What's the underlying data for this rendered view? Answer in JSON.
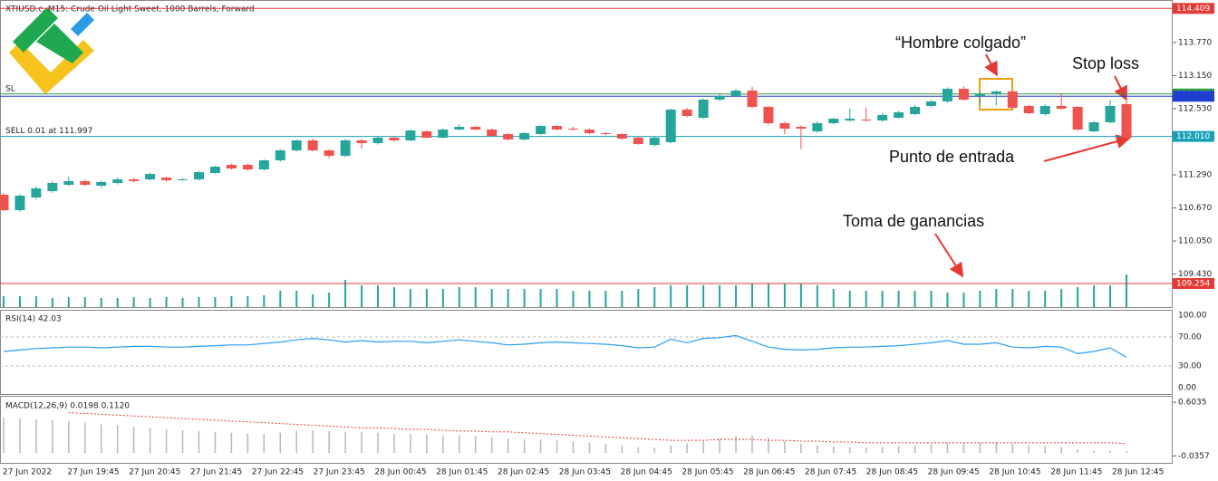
{
  "chart_data": {
    "type": "candlestick",
    "title": "XTIUSD.c, M15:  Crude Oil Light Sweet, 1000 Barrels, Forward",
    "xtick_labels": [
      "27 Jun 2022",
      "27 Jun 19:45",
      "27 Jun 20:45",
      "27 Jun 21:45",
      "27 Jun 22:45",
      "27 Jun 23:45",
      "28 Jun 00:45",
      "28 Jun 01:45",
      "28 Jun 02:45",
      "28 Jun 03:45",
      "28 Jun 04:45",
      "28 Jun 05:45",
      "28 Jun 06:45",
      "28 Jun 07:45",
      "28 Jun 08:45",
      "28 Jun 09:45",
      "28 Jun 10:45",
      "28 Jun 11:45",
      "28 Jun 12:45"
    ],
    "open": [
      110.917,
      110.628,
      110.866,
      110.985,
      111.104,
      111.172,
      111.087,
      111.138,
      111.205,
      111.205,
      111.239,
      111.205,
      111.205,
      111.324,
      111.477,
      111.477,
      111.392,
      111.562,
      111.749,
      111.936,
      111.749,
      111.647,
      111.936,
      111.885,
      111.987,
      111.936,
      112.105,
      111.987,
      112.139,
      112.19,
      112.139,
      112.054,
      111.953,
      112.054,
      112.207,
      112.156,
      112.139,
      112.071,
      112.054,
      111.987,
      111.851,
      111.902,
      112.513,
      112.36,
      112.7,
      112.768,
      112.87,
      112.564,
      112.258,
      112.19,
      112.105,
      112.258,
      112.309,
      112.326,
      112.309,
      112.36,
      112.428,
      112.581,
      112.666,
      112.904,
      112.768,
      112.802,
      112.853,
      112.581,
      112.428,
      112.581,
      112.564,
      112.105,
      112.275,
      112.615
    ],
    "high": [
      110.95,
      110.93,
      111.07,
      111.17,
      111.26,
      111.2,
      111.18,
      111.24,
      111.23,
      111.33,
      111.26,
      111.23,
      111.36,
      111.46,
      111.5,
      111.5,
      111.58,
      111.77,
      111.95,
      111.97,
      111.77,
      111.96,
      111.97,
      112.02,
      112.01,
      112.14,
      112.13,
      112.16,
      112.24,
      112.21,
      112.16,
      112.07,
      112.09,
      112.22,
      112.22,
      112.19,
      112.16,
      112.09,
      112.07,
      112.0,
      112.01,
      112.53,
      112.55,
      112.72,
      112.8,
      112.9,
      112.94,
      112.58,
      112.29,
      112.22,
      112.29,
      112.36,
      112.53,
      112.55,
      112.45,
      112.49,
      112.6,
      112.69,
      112.93,
      112.95,
      112.85,
      112.87,
      112.87,
      112.6,
      112.61,
      112.82,
      112.58,
      112.3,
      112.7,
      112.76
    ],
    "low": [
      110.6,
      110.6,
      110.83,
      110.95,
      111.08,
      111.08,
      111.05,
      111.11,
      111.15,
      111.18,
      111.16,
      111.18,
      111.19,
      111.31,
      111.39,
      111.37,
      111.37,
      111.54,
      111.73,
      111.73,
      111.6,
      111.62,
      111.78,
      111.86,
      111.91,
      111.92,
      111.97,
      111.97,
      112.12,
      112.12,
      112.0,
      111.93,
      111.93,
      112.04,
      112.12,
      112.12,
      112.05,
      112.03,
      111.95,
      111.85,
      111.82,
      111.88,
      112.37,
      112.34,
      112.68,
      112.75,
      112.54,
      112.23,
      112.05,
      111.77,
      112.08,
      112.24,
      112.29,
      112.29,
      112.29,
      112.34,
      112.41,
      112.56,
      112.64,
      112.68,
      112.6,
      112.59,
      112.53,
      112.42,
      112.4,
      112.51,
      112.12,
      112.09,
      112.26,
      111.96
    ],
    "close": [
      110.628,
      110.9,
      111.036,
      111.138,
      111.172,
      111.104,
      111.155,
      111.205,
      111.172,
      111.307,
      111.188,
      111.205,
      111.341,
      111.443,
      111.409,
      111.392,
      111.562,
      111.749,
      111.936,
      111.749,
      111.647,
      111.936,
      111.885,
      111.987,
      111.936,
      112.122,
      111.987,
      112.139,
      112.19,
      112.139,
      112.021,
      111.953,
      112.071,
      112.207,
      112.139,
      112.139,
      112.071,
      112.054,
      111.97,
      111.868,
      111.987,
      112.513,
      112.394,
      112.7,
      112.768,
      112.87,
      112.564,
      112.258,
      112.156,
      112.156,
      112.258,
      112.343,
      112.343,
      112.309,
      112.411,
      112.462,
      112.564,
      112.666,
      112.904,
      112.7,
      112.802,
      112.853,
      112.547,
      112.445,
      112.581,
      112.53,
      112.139,
      112.275,
      112.581,
      111.987
    ],
    "volume": [
      12,
      12,
      12,
      10,
      11,
      11,
      10,
      10,
      11,
      10,
      11,
      10,
      11,
      11,
      12,
      12,
      13,
      18,
      18,
      14,
      16,
      30,
      24,
      24,
      22,
      20,
      20,
      20,
      22,
      22,
      20,
      20,
      20,
      20,
      20,
      18,
      18,
      18,
      18,
      20,
      22,
      24,
      24,
      24,
      24,
      24,
      26,
      26,
      26,
      26,
      24,
      20,
      18,
      18,
      18,
      18,
      18,
      18,
      16,
      16,
      18,
      20,
      20,
      18,
      18,
      20,
      22,
      24,
      24,
      36
    ],
    "up_color": "#26a69a",
    "down_color": "#ef5350",
    "volume_color": "#26a69a",
    "ylim": [
      108.795,
      114.567
    ],
    "yticks": [
      {
        "value": 113.77,
        "label": "113.770"
      },
      {
        "value": 113.15,
        "label": "113.150"
      },
      {
        "value": 112.53,
        "label": "112.530"
      },
      {
        "value": 111.29,
        "label": "111.290"
      },
      {
        "value": 110.67,
        "label": "110.670"
      },
      {
        "value": 110.05,
        "label": "110.050"
      },
      {
        "value": 109.43,
        "label": "109.430"
      }
    ],
    "levels": [
      {
        "value": 114.409,
        "color": "#e53935"
      },
      {
        "value": 112.805,
        "color": "#2e9e3e",
        "text": "SL"
      },
      {
        "value": 112.763,
        "color": "#1e3fd0"
      },
      {
        "value": 112.01,
        "label": "112.010",
        "color": "#17a2b8",
        "text": "SELL 0.01 at 111.997"
      },
      {
        "value": 109.254,
        "color": "#e53935"
      }
    ],
    "annotations": [
      "“Hombre colgado”",
      "Stop loss",
      "Punto de entrada",
      "Toma de ganancias"
    ],
    "rsi": {
      "title": "RSI(14) 42.03",
      "color": "#2a9df4",
      "values": [
        50,
        52,
        54,
        55,
        56,
        56,
        55,
        56,
        57,
        57,
        56,
        56,
        57,
        58,
        59,
        59,
        61,
        63,
        66,
        68,
        66,
        63,
        65,
        63,
        64,
        64,
        62,
        64,
        66,
        64,
        62,
        59,
        60,
        62,
        63,
        62,
        61,
        60,
        58,
        55,
        56,
        67,
        62,
        68,
        69,
        72,
        64,
        56,
        53,
        52,
        53,
        55,
        56,
        56,
        57,
        58,
        60,
        62,
        65,
        60,
        60,
        62,
        56,
        55,
        57,
        56,
        47,
        50,
        55,
        42.03
      ],
      "ylim": [
        0,
        100
      ],
      "yticks": [
        {
          "value": 100,
          "label": "100.00"
        },
        {
          "value": 70,
          "label": "70.00"
        },
        {
          "value": 30,
          "label": "30.00"
        },
        {
          "value": 0,
          "label": "0.00"
        }
      ]
    },
    "macd": {
      "title": "MACD(12,26,9) 0.0198 0.1120",
      "histogram_color": "#b8b8b8",
      "signal_color": "#e53935",
      "histogram": [
        0.42,
        0.41,
        0.4,
        0.39,
        0.38,
        0.36,
        0.34,
        0.33,
        0.31,
        0.3,
        0.28,
        0.27,
        0.26,
        0.25,
        0.24,
        0.23,
        0.23,
        0.24,
        0.26,
        0.27,
        0.26,
        0.25,
        0.25,
        0.24,
        0.23,
        0.23,
        0.22,
        0.21,
        0.21,
        0.2,
        0.19,
        0.17,
        0.16,
        0.16,
        0.15,
        0.14,
        0.12,
        0.11,
        0.09,
        0.07,
        0.06,
        0.09,
        0.11,
        0.14,
        0.17,
        0.2,
        0.21,
        0.18,
        0.14,
        0.11,
        0.09,
        0.08,
        0.07,
        0.07,
        0.07,
        0.08,
        0.09,
        0.1,
        0.12,
        0.12,
        0.12,
        0.13,
        0.11,
        0.09,
        0.08,
        0.07,
        0.04,
        0.03,
        0.03,
        0.0198
      ],
      "signal": [
        null,
        null,
        null,
        null,
        0.48,
        0.47,
        0.46,
        0.45,
        0.44,
        0.43,
        0.42,
        0.41,
        0.4,
        0.39,
        0.38,
        0.37,
        0.36,
        0.35,
        0.34,
        0.33,
        0.32,
        0.31,
        0.3,
        0.3,
        0.29,
        0.28,
        0.28,
        0.27,
        0.26,
        0.26,
        0.25,
        0.25,
        0.24,
        0.23,
        0.22,
        0.21,
        0.2,
        0.19,
        0.18,
        0.17,
        0.16,
        0.15,
        0.15,
        0.15,
        0.16,
        0.16,
        0.16,
        0.15,
        0.15,
        0.14,
        0.14,
        0.13,
        0.13,
        0.12,
        0.12,
        0.12,
        0.12,
        0.12,
        0.12,
        0.12,
        0.12,
        0.12,
        0.12,
        0.12,
        0.12,
        0.12,
        0.12,
        0.12,
        0.12,
        0.112
      ],
      "ylim": [
        -0.13,
        0.68
      ],
      "yticks": [
        0.6035,
        -0.0357
      ]
    }
  }
}
